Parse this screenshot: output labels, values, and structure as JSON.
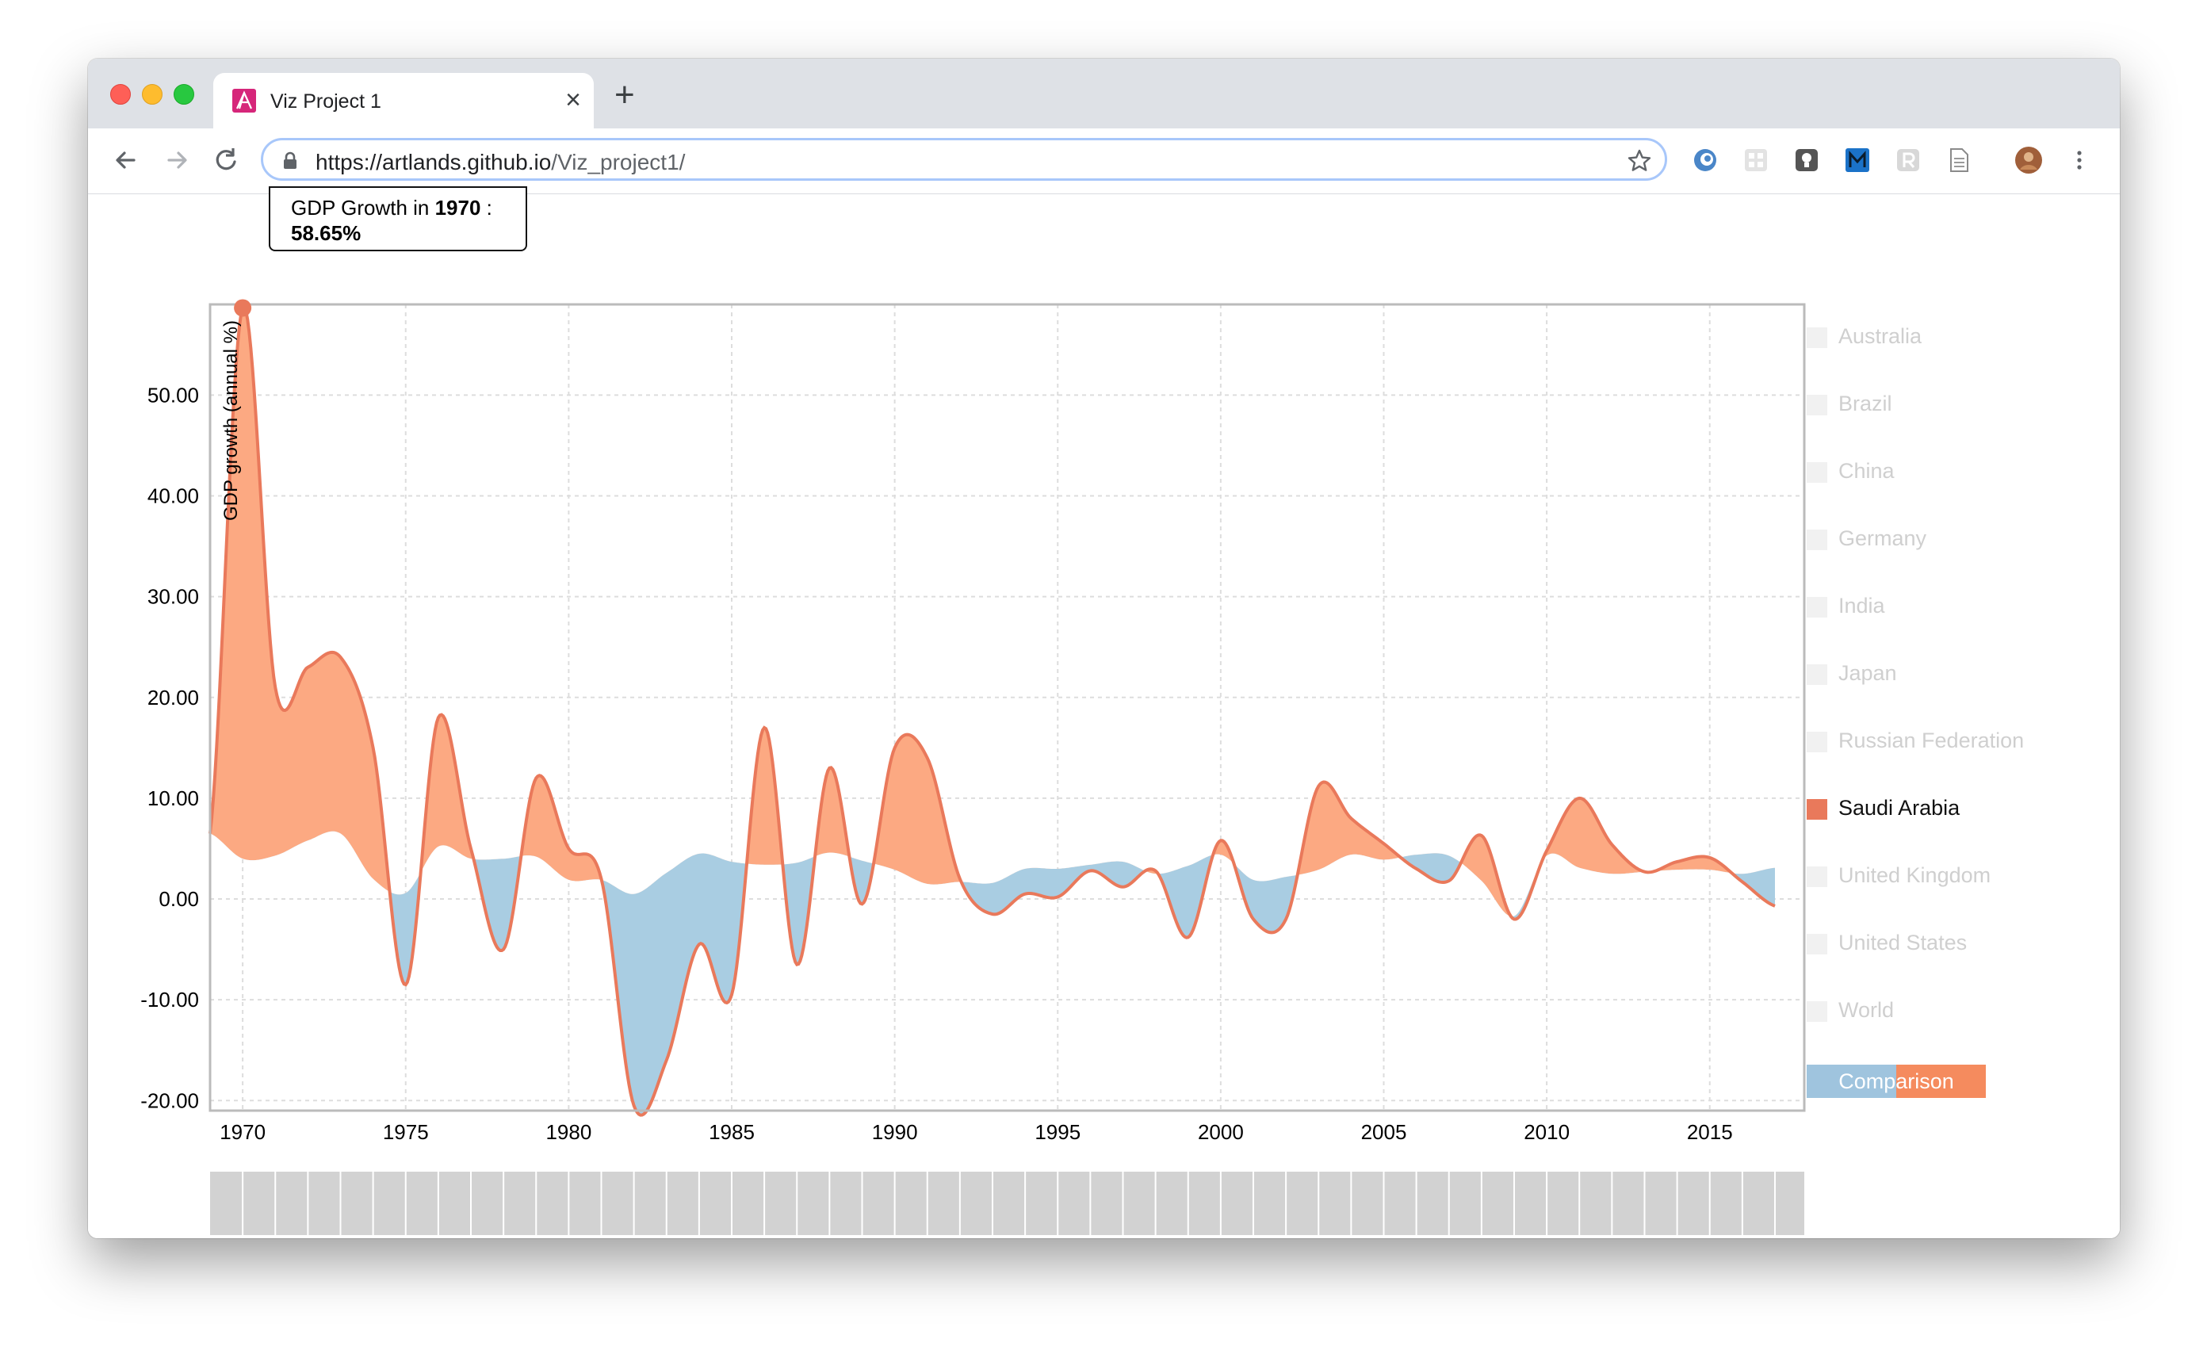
{
  "browser": {
    "tab_title": "Viz Project 1",
    "url_host": "https://artlands.github.io",
    "url_path": "/Viz_project1/"
  },
  "tooltip": {
    "prefix": "GDP Growth in ",
    "year": "1970",
    "suffix": " :",
    "value": "58.65%"
  },
  "legend": {
    "items": [
      {
        "label": "Australia",
        "active": false
      },
      {
        "label": "Brazil",
        "active": false
      },
      {
        "label": "China",
        "active": false
      },
      {
        "label": "Germany",
        "active": false
      },
      {
        "label": "India",
        "active": false
      },
      {
        "label": "Japan",
        "active": false
      },
      {
        "label": "Russian Federation",
        "active": false
      },
      {
        "label": "Saudi Arabia",
        "active": true
      },
      {
        "label": "United Kingdom",
        "active": false
      },
      {
        "label": "United States",
        "active": false
      },
      {
        "label": "World",
        "active": false
      }
    ],
    "compare_label": "Comparison"
  },
  "colors": {
    "above": "#fca982",
    "below": "#a9cde2",
    "line": "#e9795b",
    "grid": "#dddddd",
    "frame": "#bbbbbb",
    "brush": "#d2d2d2"
  },
  "chart_data": {
    "type": "area",
    "ylabel": "GDP growth (annual %)",
    "xlim": [
      1969,
      2017.9
    ],
    "ylim": [
      -21,
      59
    ],
    "yticks": [
      -20,
      -10,
      0,
      10,
      20,
      30,
      40,
      50
    ],
    "ytick_labels": [
      "-20.00",
      "-10.00",
      "0.00",
      "10.00",
      "20.00",
      "30.00",
      "40.00",
      "50.00"
    ],
    "xticks": [
      1970,
      1975,
      1980,
      1985,
      1990,
      1995,
      2000,
      2005,
      2010,
      2015
    ],
    "xtick_labels": [
      "1970",
      "1975",
      "1980",
      "1985",
      "1990",
      "1995",
      "2000",
      "2005",
      "2010",
      "2015"
    ],
    "highlight_point": {
      "x": 1970,
      "y": 58.65
    },
    "series": [
      {
        "name": "Saudi Arabia",
        "x": [
          1969,
          1970,
          1971,
          1972,
          1973,
          1974,
          1975,
          1976,
          1977,
          1978,
          1979,
          1980,
          1981,
          1982,
          1983,
          1984,
          1985,
          1986,
          1987,
          1988,
          1989,
          1990,
          1991,
          1992,
          1993,
          1994,
          1995,
          1996,
          1997,
          1998,
          1999,
          2000,
          2001,
          2002,
          2003,
          2004,
          2005,
          2006,
          2007,
          2008,
          2009,
          2010,
          2011,
          2012,
          2013,
          2014,
          2015,
          2016,
          2017
        ],
        "values": [
          6.5,
          58.65,
          21.0,
          23.0,
          24.0,
          15.0,
          -8.5,
          18.0,
          5.0,
          -5.0,
          12.0,
          5.0,
          2.0,
          -20.5,
          -16.0,
          -4.5,
          -9.5,
          17.0,
          -6.5,
          13.0,
          -0.5,
          15.0,
          14.0,
          2.0,
          -1.5,
          0.5,
          0.2,
          2.8,
          1.2,
          2.8,
          -3.8,
          5.8,
          -2.0,
          -2.0,
          11.2,
          8.0,
          5.5,
          3.0,
          1.8,
          6.3,
          -2.0,
          4.8,
          10.0,
          5.4,
          2.7,
          3.7,
          4.1,
          1.7,
          -0.7
        ]
      },
      {
        "name": "Comparison",
        "x": [
          1969,
          1970,
          1971,
          1972,
          1973,
          1974,
          1975,
          1976,
          1977,
          1978,
          1979,
          1980,
          1981,
          1982,
          1983,
          1984,
          1985,
          1986,
          1987,
          1988,
          1989,
          1990,
          1991,
          1992,
          1993,
          1994,
          1995,
          1996,
          1997,
          1998,
          1999,
          2000,
          2001,
          2002,
          2003,
          2004,
          2005,
          2006,
          2007,
          2008,
          2009,
          2010,
          2011,
          2012,
          2013,
          2014,
          2015,
          2016,
          2017
        ],
        "values": [
          6.5,
          4.0,
          4.3,
          5.8,
          6.5,
          2.0,
          0.6,
          5.2,
          4.0,
          4.0,
          4.2,
          1.9,
          1.9,
          0.5,
          2.6,
          4.5,
          3.7,
          3.4,
          3.6,
          4.6,
          3.8,
          2.9,
          1.5,
          1.7,
          1.6,
          3.0,
          3.0,
          3.4,
          3.7,
          2.5,
          3.3,
          4.4,
          1.9,
          2.2,
          2.9,
          4.4,
          3.9,
          4.4,
          4.3,
          1.8,
          -1.7,
          4.3,
          3.1,
          2.5,
          2.7,
          2.9,
          2.9,
          2.5,
          3.1
        ]
      }
    ],
    "brush": {
      "xlim": [
        1969,
        2017.9
      ],
      "ticks": [
        1970,
        1975,
        1980,
        1985,
        1990,
        1995,
        2000,
        2005,
        2010,
        2015
      ]
    }
  }
}
